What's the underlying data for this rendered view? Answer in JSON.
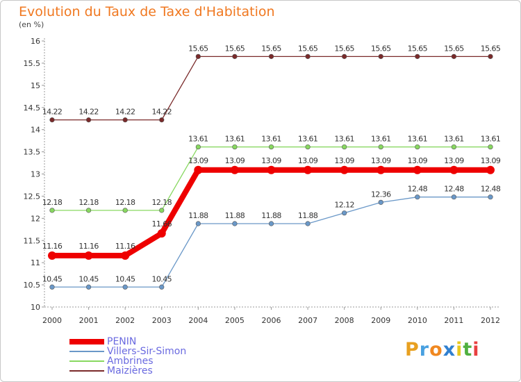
{
  "title": "Evolution du Taux de Taxe d'Habitation",
  "unit_label": "(en %)",
  "brand": {
    "text": "Proxiti",
    "letter_colors": [
      "#e8a020",
      "#48a0e0",
      "#f08820",
      "#3080d0",
      "#e8c820",
      "#50b040",
      "#e84040"
    ]
  },
  "chart_data": {
    "type": "line",
    "title": "Evolution du Taux de Taxe d'Habitation",
    "ylabel": "(en %)",
    "xlabel": "",
    "x": [
      "2000",
      "2001",
      "2002",
      "2003",
      "2004",
      "2005",
      "2006",
      "2007",
      "2008",
      "2009",
      "2010",
      "2011",
      "2012"
    ],
    "ylim": [
      10,
      16
    ],
    "yticks": [
      "10",
      "10.5",
      "11",
      "11.5",
      "12",
      "12.5",
      "13",
      "13.5",
      "14",
      "14.5",
      "15",
      "15.5",
      "16"
    ],
    "grid": false,
    "legend_position": "bottom-left",
    "series": [
      {
        "name": "Maizières",
        "color": "#7a2a2a",
        "values": [
          14.22,
          14.22,
          14.22,
          14.22,
          15.65,
          15.65,
          15.65,
          15.65,
          15.65,
          15.65,
          15.65,
          15.65,
          15.65
        ],
        "labels": [
          "14.22",
          "14.22",
          "14.22",
          "14.22",
          "15.65",
          "15.65",
          "15.65",
          "15.65",
          "15.65",
          "15.65",
          "15.65",
          "15.65",
          "15.65"
        ]
      },
      {
        "name": "Ambrines",
        "color": "#88d860",
        "values": [
          12.18,
          12.18,
          12.18,
          12.18,
          13.61,
          13.61,
          13.61,
          13.61,
          13.61,
          13.61,
          13.61,
          13.61,
          13.61
        ],
        "labels": [
          "12.18",
          "12.18",
          "12.18",
          "12.18",
          "13.61",
          "13.61",
          "13.61",
          "13.61",
          "13.61",
          "13.61",
          "13.61",
          "13.61",
          "13.61"
        ]
      },
      {
        "name": "Villers-Sir-Simon",
        "color": "#6a98c8",
        "values": [
          10.45,
          10.45,
          10.45,
          10.45,
          11.88,
          11.88,
          11.88,
          11.88,
          12.12,
          12.36,
          12.48,
          12.48,
          12.48
        ],
        "labels": [
          "10.45",
          "10.45",
          "10.45",
          "10.45",
          "11.88",
          "11.88",
          "11.88",
          "11.88",
          "12.12",
          "12.36",
          "12.48",
          "12.48",
          "12.48"
        ]
      },
      {
        "name": "PENIN",
        "color": "#ee0000",
        "values": [
          11.16,
          11.16,
          11.16,
          11.66,
          13.09,
          13.09,
          13.09,
          13.09,
          13.09,
          13.09,
          13.09,
          13.09,
          13.09
        ],
        "labels": [
          "11.16",
          "11.16",
          "11.16",
          "11.66",
          "13.09",
          "13.09",
          "13.09",
          "13.09",
          "13.09",
          "13.09",
          "13.09",
          "13.09",
          "13.09"
        ]
      }
    ],
    "legend": [
      "PENIN",
      "Villers-Sir-Simon",
      "Ambrines",
      "Maizières"
    ]
  }
}
